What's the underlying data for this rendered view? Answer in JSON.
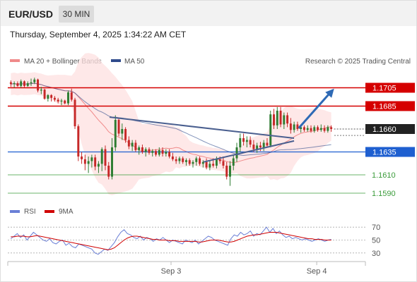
{
  "header": {
    "symbol": "EUR/USD",
    "timeframe": "30 MIN",
    "datetime": "Thursday, September 4, 2025 1:34:22 AM CET"
  },
  "legend": {
    "ma20": {
      "label": "MA 20 + Bollinger Bands",
      "color": "#f08a8a"
    },
    "ma50": {
      "label": "MA 50",
      "color": "#2f4b8c"
    },
    "copyright": "Research © 2025 Trading Central"
  },
  "rsi_legend": {
    "rsi": "RSI",
    "ma9": "9MA",
    "rsi_color": "#6a7fd6",
    "ma9_color": "#d00000"
  },
  "colors": {
    "up": "#2e7d32",
    "down": "#c62828",
    "resistance": "#d50000",
    "support": "#1e5fd0",
    "target": "#3a9b3a",
    "arrow": "#2e6ab5"
  },
  "chart_data": [
    {
      "type": "candlestick",
      "title": "EUR/USD",
      "ylim": [
        1.158,
        1.172
      ],
      "xlim": [
        0,
        100
      ],
      "x_ticks": [
        {
          "x": 50,
          "label": "Sep 3"
        },
        {
          "x": 95,
          "label": "Sep 4"
        }
      ],
      "levels": [
        {
          "value": 1.1705,
          "label": "1.1705",
          "style": "resistance"
        },
        {
          "value": 1.1685,
          "label": "1.1685",
          "style": "resistance"
        },
        {
          "value": 1.166,
          "label": "1.1660",
          "style": "current"
        },
        {
          "value": 1.1635,
          "label": "1.1635",
          "style": "support"
        },
        {
          "value": 1.161,
          "label": "1.1610",
          "style": "target"
        },
        {
          "value": 1.159,
          "label": "1.1590",
          "style": "target"
        }
      ],
      "candles": [
        [
          1.1711,
          1.1713,
          1.1706,
          1.1709
        ],
        [
          1.1709,
          1.1712,
          1.1705,
          1.171
        ],
        [
          1.171,
          1.1712,
          1.1706,
          1.1707
        ],
        [
          1.1707,
          1.1714,
          1.1705,
          1.1712
        ],
        [
          1.1712,
          1.1713,
          1.1705,
          1.1707
        ],
        [
          1.1707,
          1.1712,
          1.1706,
          1.171
        ],
        [
          1.171,
          1.1715,
          1.1707,
          1.1711
        ],
        [
          1.1711,
          1.1716,
          1.1709,
          1.1714
        ],
        [
          1.1714,
          1.1715,
          1.17,
          1.1702
        ],
        [
          1.1702,
          1.1706,
          1.1698,
          1.1703
        ],
        [
          1.1703,
          1.1704,
          1.1692,
          1.1693
        ],
        [
          1.1693,
          1.1698,
          1.169,
          1.1697
        ],
        [
          1.1697,
          1.1698,
          1.169,
          1.1694
        ],
        [
          1.1694,
          1.1696,
          1.169,
          1.1692
        ],
        [
          1.1692,
          1.1694,
          1.1688,
          1.169
        ],
        [
          1.169,
          1.1693,
          1.1686,
          1.1691
        ],
        [
          1.1691,
          1.1692,
          1.1687,
          1.1688
        ],
        [
          1.1688,
          1.1702,
          1.1686,
          1.17
        ],
        [
          1.17,
          1.1704,
          1.169,
          1.1692
        ],
        [
          1.1692,
          1.1694,
          1.166,
          1.1663
        ],
        [
          1.1663,
          1.1665,
          1.1625,
          1.163
        ],
        [
          1.163,
          1.1635,
          1.1622,
          1.1627
        ],
        [
          1.1627,
          1.1632,
          1.1615,
          1.1622
        ],
        [
          1.1622,
          1.163,
          1.1612,
          1.1625
        ],
        [
          1.1625,
          1.1632,
          1.1618,
          1.1629
        ],
        [
          1.1629,
          1.1632,
          1.1615,
          1.1619
        ],
        [
          1.1619,
          1.1625,
          1.1612,
          1.1622
        ],
        [
          1.1622,
          1.164,
          1.1614,
          1.1638
        ],
        [
          1.1638,
          1.1642,
          1.1615,
          1.162
        ],
        [
          1.162,
          1.1624,
          1.1605,
          1.1608
        ],
        [
          1.1608,
          1.165,
          1.1605,
          1.164
        ],
        [
          1.164,
          1.1675,
          1.1636,
          1.167
        ],
        [
          1.167,
          1.1672,
          1.1652,
          1.1655
        ],
        [
          1.1655,
          1.1666,
          1.1648,
          1.166
        ],
        [
          1.166,
          1.1662,
          1.1645,
          1.1648
        ],
        [
          1.1648,
          1.1652,
          1.1638,
          1.1641
        ],
        [
          1.1641,
          1.1648,
          1.1636,
          1.1645
        ],
        [
          1.1645,
          1.1648,
          1.1635,
          1.1637
        ],
        [
          1.1637,
          1.1642,
          1.1632,
          1.164
        ],
        [
          1.164,
          1.1643,
          1.1633,
          1.1635
        ],
        [
          1.1635,
          1.164,
          1.163,
          1.1638
        ],
        [
          1.1638,
          1.164,
          1.1632,
          1.1634
        ],
        [
          1.1634,
          1.1638,
          1.163,
          1.1636
        ],
        [
          1.1636,
          1.1638,
          1.163,
          1.1632
        ],
        [
          1.1632,
          1.164,
          1.163,
          1.1637
        ],
        [
          1.1637,
          1.164,
          1.163,
          1.1633
        ],
        [
          1.1633,
          1.1638,
          1.163,
          1.1635
        ],
        [
          1.1635,
          1.1638,
          1.1628,
          1.163
        ],
        [
          1.163,
          1.1634,
          1.1625,
          1.1627
        ],
        [
          1.1627,
          1.163,
          1.1622,
          1.1625
        ],
        [
          1.1625,
          1.163,
          1.1622,
          1.1628
        ],
        [
          1.1628,
          1.163,
          1.1622,
          1.1624
        ],
        [
          1.1624,
          1.1628,
          1.162,
          1.1626
        ],
        [
          1.1626,
          1.1628,
          1.162,
          1.1622
        ],
        [
          1.1622,
          1.1626,
          1.1618,
          1.1624
        ],
        [
          1.1624,
          1.163,
          1.162,
          1.1628
        ],
        [
          1.1628,
          1.163,
          1.162,
          1.1622
        ],
        [
          1.1622,
          1.1626,
          1.1618,
          1.1624
        ],
        [
          1.1624,
          1.1628,
          1.1616,
          1.1618
        ],
        [
          1.1618,
          1.1625,
          1.1615,
          1.1622
        ],
        [
          1.1622,
          1.1628,
          1.1618,
          1.162
        ],
        [
          1.162,
          1.163,
          1.1617,
          1.1627
        ],
        [
          1.1627,
          1.163,
          1.1622,
          1.1625
        ],
        [
          1.1625,
          1.163,
          1.1617,
          1.162
        ],
        [
          1.162,
          1.1624,
          1.1605,
          1.1608
        ],
        [
          1.1608,
          1.1625,
          1.1598,
          1.162
        ],
        [
          1.162,
          1.1632,
          1.1615,
          1.1628
        ],
        [
          1.1628,
          1.1645,
          1.1624,
          1.164
        ],
        [
          1.164,
          1.1655,
          1.1635,
          1.165
        ],
        [
          1.165,
          1.1655,
          1.1642,
          1.1646
        ],
        [
          1.1646,
          1.1652,
          1.164,
          1.1648
        ],
        [
          1.1648,
          1.1652,
          1.164,
          1.1643
        ],
        [
          1.1643,
          1.1648,
          1.1635,
          1.1638
        ],
        [
          1.1638,
          1.1645,
          1.1634,
          1.1642
        ],
        [
          1.1642,
          1.1646,
          1.1636,
          1.164
        ],
        [
          1.164,
          1.1648,
          1.1636,
          1.1645
        ],
        [
          1.1645,
          1.165,
          1.164,
          1.1642
        ],
        [
          1.1642,
          1.168,
          1.164,
          1.1676
        ],
        [
          1.1676,
          1.1682,
          1.166,
          1.1664
        ],
        [
          1.1664,
          1.1684,
          1.166,
          1.168
        ],
        [
          1.168,
          1.1684,
          1.1662,
          1.1665
        ],
        [
          1.1665,
          1.1678,
          1.166,
          1.1675
        ],
        [
          1.1675,
          1.1678,
          1.1662,
          1.1666
        ],
        [
          1.1666,
          1.1672,
          1.1655,
          1.1659
        ],
        [
          1.1659,
          1.1668,
          1.1656,
          1.1665
        ],
        [
          1.1665,
          1.1668,
          1.1658,
          1.166
        ],
        [
          1.166,
          1.1664,
          1.1656,
          1.1662
        ],
        [
          1.1662,
          1.1664,
          1.1657,
          1.1659
        ],
        [
          1.1659,
          1.1664,
          1.1657,
          1.1661
        ],
        [
          1.1661,
          1.1664,
          1.1656,
          1.1658
        ],
        [
          1.1658,
          1.1664,
          1.1656,
          1.1662
        ],
        [
          1.1662,
          1.1664,
          1.1657,
          1.1659
        ],
        [
          1.1659,
          1.1665,
          1.1657,
          1.1661
        ],
        [
          1.1661,
          1.1664,
          1.1656,
          1.1658
        ],
        [
          1.1658,
          1.1664,
          1.1656,
          1.1662
        ],
        [
          1.1662,
          1.1664,
          1.1657,
          1.166
        ]
      ],
      "trendlines": [
        {
          "name": "falling-trendline",
          "points": [
            [
              31,
              1.1673
            ],
            [
              88,
              1.165
            ]
          ]
        },
        {
          "name": "rising-trendline",
          "points": [
            [
              60,
              1.1624
            ],
            [
              88,
              1.1647
            ]
          ]
        }
      ],
      "projection": {
        "from": [
          89,
          1.1661
        ],
        "to": [
          96,
          1.1704
        ]
      }
    },
    {
      "type": "line",
      "title": "RSI",
      "ylim": [
        20,
        80
      ],
      "levels": [
        70,
        50,
        30
      ],
      "series": [
        {
          "name": "RSI",
          "values": [
            52,
            56,
            60,
            54,
            58,
            50,
            56,
            62,
            58,
            54,
            50,
            48,
            52,
            46,
            44,
            48,
            50,
            42,
            45,
            40,
            38,
            44,
            42,
            40,
            38,
            36,
            30,
            28,
            32,
            36,
            34,
            40,
            46,
            55,
            62,
            66,
            60,
            58,
            54,
            52,
            56,
            50,
            54,
            52,
            48,
            52,
            50,
            54,
            50,
            46,
            50,
            48,
            46,
            44,
            50,
            48,
            46,
            50,
            44,
            48,
            52,
            56,
            54,
            50,
            48,
            46,
            44,
            42,
            52,
            58,
            56,
            62,
            58,
            60,
            64,
            56,
            60,
            58,
            64,
            70,
            62,
            68,
            60,
            64,
            58,
            54,
            56,
            52,
            54,
            52,
            50,
            52,
            50,
            48,
            50,
            52,
            50,
            48,
            50,
            51
          ]
        },
        {
          "name": "9MA",
          "values": [
            55,
            55,
            56,
            56,
            56,
            55,
            55,
            56,
            57,
            56,
            55,
            54,
            53,
            52,
            51,
            50,
            49,
            48,
            47,
            46,
            45,
            44,
            43,
            42,
            41,
            40,
            39,
            38,
            37,
            36,
            35,
            36,
            38,
            42,
            46,
            50,
            53,
            55,
            56,
            56,
            55,
            54,
            53,
            52,
            51,
            51,
            50,
            50,
            50,
            49,
            49,
            49,
            48,
            48,
            48,
            48,
            48,
            48,
            47,
            47,
            48,
            49,
            50,
            50,
            50,
            49,
            48,
            47,
            47,
            48,
            50,
            52,
            54,
            56,
            57,
            58,
            58,
            59,
            60,
            61,
            62,
            62,
            62,
            61,
            60,
            59,
            58,
            57,
            56,
            55,
            54,
            53,
            52,
            52,
            51,
            51,
            51,
            50,
            50,
            50
          ]
        }
      ]
    }
  ]
}
